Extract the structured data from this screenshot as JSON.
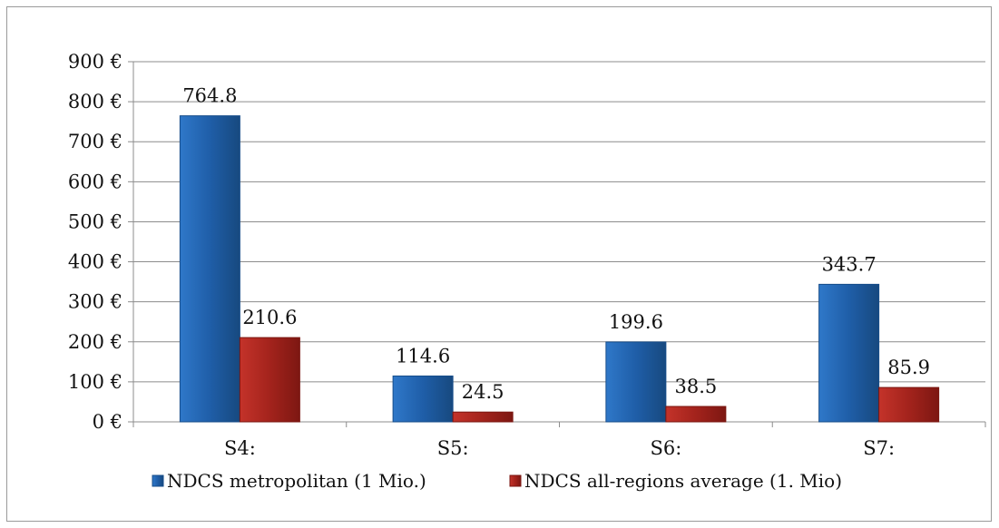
{
  "chart_data": {
    "type": "bar",
    "categories": [
      "S4:",
      "S5:",
      "S6:",
      "S7:"
    ],
    "series": [
      {
        "name": "NDCS metropolitan (1 Mio.)",
        "values": [
          764.8,
          114.6,
          199.6,
          343.7
        ],
        "color": "#1f5ea8"
      },
      {
        "name": "NDCS all-regions average (1. Mio)",
        "values": [
          210.6,
          24.5,
          38.5,
          85.9
        ],
        "color": "#a3231c"
      }
    ],
    "data_labels": [
      [
        "764.8",
        "114.6",
        "199.6",
        "343.7"
      ],
      [
        "210.6",
        "24.5",
        "38.5",
        "85.9"
      ]
    ],
    "y_ticks": [
      "0 €",
      "100 €",
      "200 €",
      "300 €",
      "400 €",
      "500 €",
      "600 €",
      "700 €",
      "800 €",
      "900 €"
    ],
    "ylim": [
      0,
      900
    ],
    "grid": true,
    "legend_position": "bottom"
  }
}
